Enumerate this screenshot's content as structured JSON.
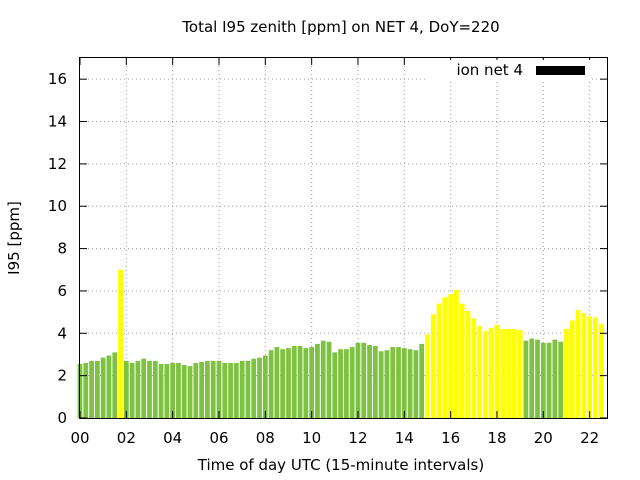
{
  "chart_data": {
    "type": "bar",
    "title": "Total I95 zenith [ppm] on NET 4, DoY=220",
    "xlabel": "Time of day UTC (15-minute intervals)",
    "ylabel": "I95 [ppm]",
    "ylim": [
      0,
      17
    ],
    "xlim": [
      0,
      22.75
    ],
    "xticks": [
      "00",
      "02",
      "04",
      "06",
      "08",
      "10",
      "12",
      "14",
      "16",
      "18",
      "20",
      "22"
    ],
    "yticks": [
      "0",
      "2",
      "4",
      "6",
      "8",
      "10",
      "12",
      "14",
      "16"
    ],
    "grid": true,
    "legend": {
      "label": "ion net 4",
      "position": "top-right",
      "color": "#000000"
    },
    "colors": {
      "low": "#7dc240",
      "high": "#ffff00"
    },
    "bar_interval_hours": 0.25,
    "series": [
      {
        "x": [
          0.0,
          0.25,
          0.5,
          0.75,
          1.0,
          1.25,
          1.5,
          1.75,
          2.0,
          2.25,
          2.5,
          2.75,
          3.0,
          3.25,
          3.5,
          3.75,
          4.0,
          4.25,
          4.5,
          4.75,
          5.0,
          5.25,
          5.5,
          5.75,
          6.0,
          6.25,
          6.5,
          6.75,
          7.0,
          7.25,
          7.5,
          7.75,
          8.0,
          8.25,
          8.5,
          8.75,
          9.0,
          9.25,
          9.5,
          9.75,
          10.0,
          10.25,
          10.5,
          10.75,
          11.0,
          11.25,
          11.5,
          11.75,
          12.0,
          12.25,
          12.5,
          12.75,
          13.0,
          13.25,
          13.5,
          13.75,
          14.0,
          14.25,
          14.5,
          14.75,
          15.0,
          15.25,
          15.5,
          15.75,
          16.0,
          16.25,
          16.5,
          16.75,
          17.0,
          17.25,
          17.5,
          17.75,
          18.0,
          18.25,
          18.5,
          18.75,
          19.0,
          19.25,
          19.5,
          19.75,
          20.0,
          20.25,
          20.5,
          20.75,
          21.0,
          21.25,
          21.5,
          21.75,
          22.0,
          22.25,
          22.5
        ],
        "values": [
          2.55,
          2.6,
          2.7,
          2.7,
          2.85,
          2.95,
          3.1,
          7.0,
          2.7,
          2.6,
          2.7,
          2.8,
          2.7,
          2.7,
          2.55,
          2.55,
          2.6,
          2.6,
          2.5,
          2.45,
          2.6,
          2.65,
          2.7,
          2.7,
          2.7,
          2.6,
          2.6,
          2.6,
          2.7,
          2.7,
          2.8,
          2.85,
          2.95,
          3.2,
          3.35,
          3.25,
          3.3,
          3.4,
          3.4,
          3.3,
          3.35,
          3.5,
          3.65,
          3.6,
          3.1,
          3.25,
          3.25,
          3.35,
          3.55,
          3.55,
          3.45,
          3.4,
          3.15,
          3.2,
          3.35,
          3.35,
          3.3,
          3.25,
          3.2,
          3.5,
          3.95,
          4.9,
          5.4,
          5.7,
          5.85,
          6.05,
          5.4,
          5.05,
          4.7,
          4.35,
          4.1,
          4.25,
          4.4,
          4.2,
          4.2,
          4.2,
          4.15,
          3.65,
          3.75,
          3.7,
          3.55,
          3.55,
          3.7,
          3.6,
          4.2,
          4.6,
          5.1,
          4.95,
          4.8,
          4.75,
          4.45
        ],
        "colors": [
          "low",
          "low",
          "low",
          "low",
          "low",
          "low",
          "low",
          "high",
          "low",
          "low",
          "low",
          "low",
          "low",
          "low",
          "low",
          "low",
          "low",
          "low",
          "low",
          "low",
          "low",
          "low",
          "low",
          "low",
          "low",
          "low",
          "low",
          "low",
          "low",
          "low",
          "low",
          "low",
          "low",
          "low",
          "low",
          "low",
          "low",
          "low",
          "low",
          "low",
          "low",
          "low",
          "low",
          "low",
          "low",
          "low",
          "low",
          "low",
          "low",
          "low",
          "low",
          "low",
          "low",
          "low",
          "low",
          "low",
          "low",
          "low",
          "low",
          "low",
          "high",
          "high",
          "high",
          "high",
          "high",
          "high",
          "high",
          "high",
          "high",
          "high",
          "high",
          "high",
          "high",
          "high",
          "high",
          "high",
          "high",
          "low",
          "low",
          "low",
          "low",
          "low",
          "low",
          "low",
          "high",
          "high",
          "high",
          "high",
          "high",
          "high",
          "high"
        ]
      }
    ]
  }
}
